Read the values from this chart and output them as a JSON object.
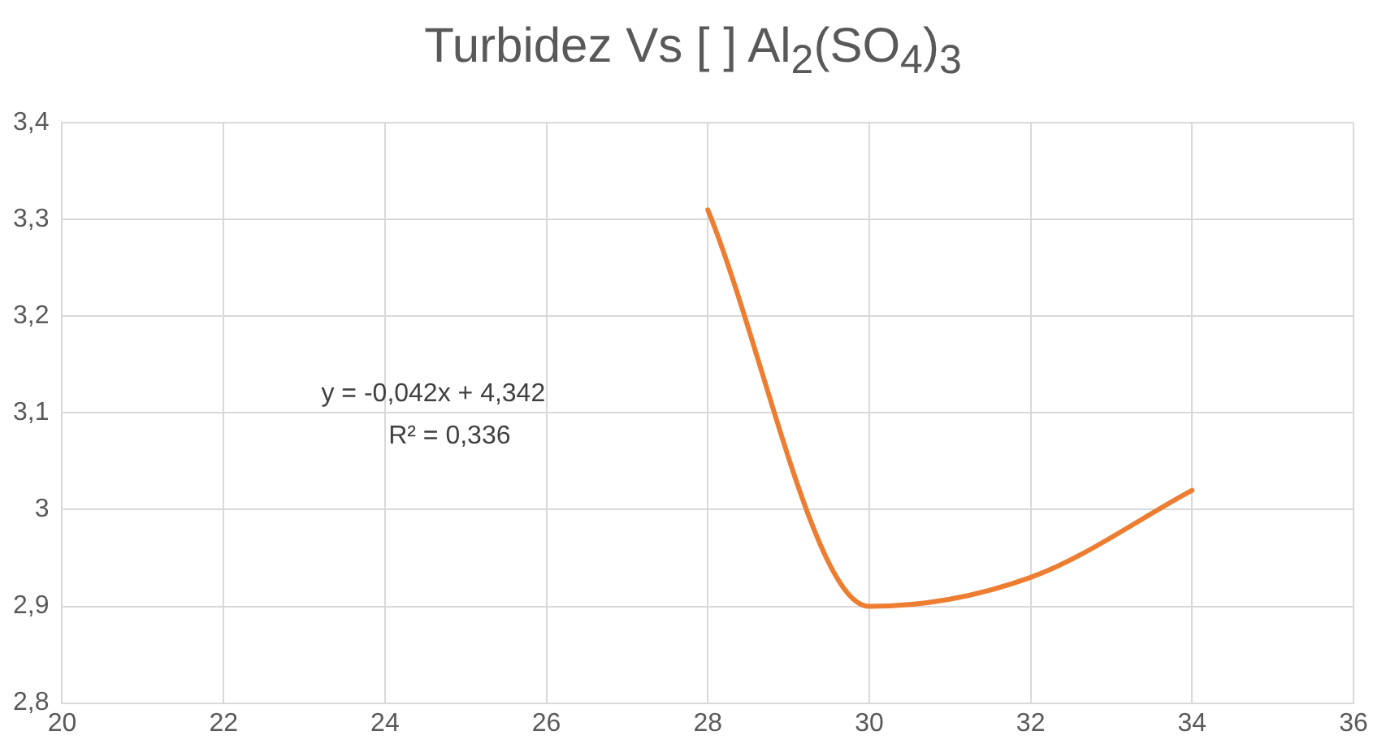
{
  "chart_data": {
    "type": "line",
    "title": "Turbidez Vs [ ] Al$_{2}$(SO$_{4}$)$_{3}$",
    "x": [
      28,
      30,
      32,
      34
    ],
    "series": [
      {
        "color": "#ed7d31",
        "values": [
          3.31,
          2.9,
          2.93,
          3.02
        ]
      }
    ],
    "xlim": [
      20,
      36
    ],
    "xticks": [
      20,
      22,
      24,
      26,
      28,
      30,
      32,
      34,
      36
    ],
    "ylim": [
      2.8,
      3.4
    ],
    "yticks": [
      {
        "value": 2.8,
        "label": "2,8"
      },
      {
        "value": 2.9,
        "label": "2,9"
      },
      {
        "value": 3,
        "label": "3"
      },
      {
        "value": 3.1,
        "label": "3,1"
      },
      {
        "value": 3.2,
        "label": "3,2"
      },
      {
        "value": 3.3,
        "label": "3,3"
      },
      {
        "value": 3.4,
        "label": "3,4"
      }
    ],
    "annotations": [
      "y = -0,042x + 4,342",
      "R² = 0,336"
    ],
    "grid": true,
    "legend": false,
    "marker": "none",
    "line_style": "solid"
  }
}
